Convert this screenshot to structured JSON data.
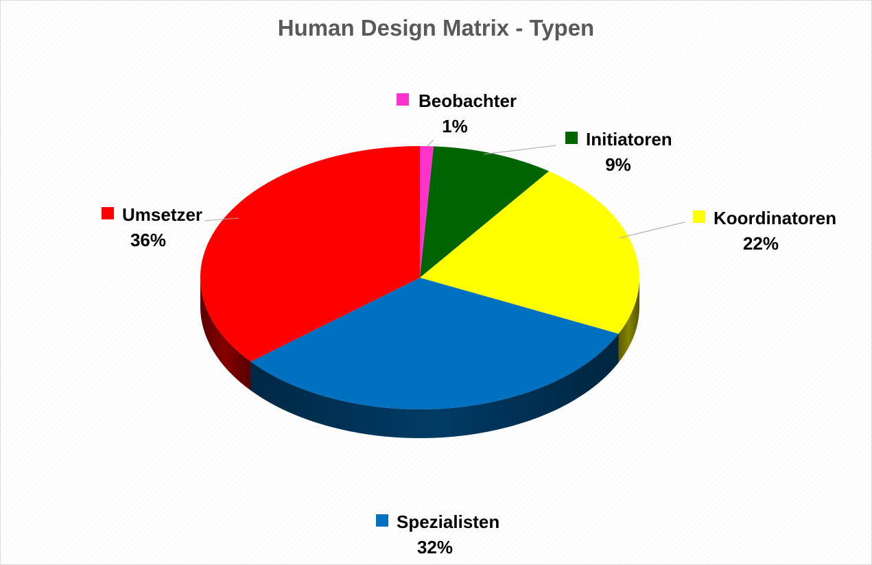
{
  "chart_data": {
    "type": "pie",
    "title": "Human Design Matrix - Typen",
    "categories": [
      "Beobachter",
      "Initiatoren",
      "Koordinatoren",
      "Spezialisten",
      "Umsetzer"
    ],
    "values": [
      1,
      9,
      22,
      32,
      36
    ],
    "value_labels": [
      "1%",
      "9%",
      "22%",
      "32%",
      "36%"
    ],
    "colors": [
      "#ff33cc",
      "#006400",
      "#ffff00",
      "#0070c0",
      "#ff0000"
    ],
    "style": "3d",
    "data_labels": "category-and-percent"
  }
}
